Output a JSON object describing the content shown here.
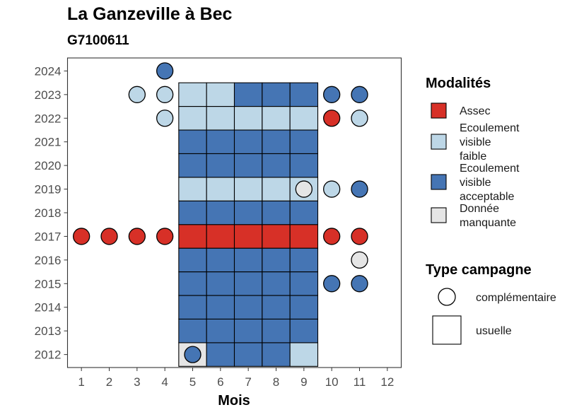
{
  "chart_data": {
    "type": "heatmap",
    "title": "La Ganzeville à Bec",
    "subtitle": "G7100611",
    "xlabel": "Mois",
    "ylabel": "",
    "x_ticks": [
      1,
      2,
      3,
      4,
      5,
      6,
      7,
      8,
      9,
      10,
      11,
      12
    ],
    "y_ticks": [
      2012,
      2013,
      2014,
      2015,
      2016,
      2017,
      2018,
      2019,
      2020,
      2021,
      2022,
      2023,
      2024
    ],
    "xlim": [
      0.5,
      12.5
    ],
    "ylim": [
      2011.45,
      2024.55
    ],
    "colors": {
      "Assec": "#d73027",
      "Ecoulement visible faible": "#bdd7e7",
      "Ecoulement visible acceptable": "#4575b4",
      "Donnée manquante": "#e5e5e5"
    },
    "legend": {
      "modalites_title": "Modalités",
      "modalites": [
        {
          "key": "Assec",
          "lines": [
            "Assec"
          ]
        },
        {
          "key": "Ecoulement visible faible",
          "lines": [
            "Ecoulement",
            "visible",
            "faible"
          ]
        },
        {
          "key": "Ecoulement visible acceptable",
          "lines": [
            "Ecoulement",
            "visible",
            "acceptable"
          ]
        },
        {
          "key": "Donnée manquante",
          "lines": [
            "Donnée",
            "manquante"
          ]
        }
      ],
      "type_title": "Type campagne",
      "types": [
        {
          "shape": "circle",
          "label": "complémentaire"
        },
        {
          "shape": "square",
          "label": "usuelle"
        }
      ]
    },
    "usuelle": [
      {
        "year": 2012,
        "values": [
          "Donnée manquante",
          "Ecoulement visible acceptable",
          "Ecoulement visible acceptable",
          "Ecoulement visible acceptable",
          "Ecoulement visible faible"
        ]
      },
      {
        "year": 2013,
        "values": [
          "Ecoulement visible acceptable",
          "Ecoulement visible acceptable",
          "Ecoulement visible acceptable",
          "Ecoulement visible acceptable",
          "Ecoulement visible acceptable"
        ]
      },
      {
        "year": 2014,
        "values": [
          "Ecoulement visible acceptable",
          "Ecoulement visible acceptable",
          "Ecoulement visible acceptable",
          "Ecoulement visible acceptable",
          "Ecoulement visible acceptable"
        ]
      },
      {
        "year": 2015,
        "values": [
          "Ecoulement visible acceptable",
          "Ecoulement visible acceptable",
          "Ecoulement visible acceptable",
          "Ecoulement visible acceptable",
          "Ecoulement visible acceptable"
        ]
      },
      {
        "year": 2016,
        "values": [
          "Ecoulement visible acceptable",
          "Ecoulement visible acceptable",
          "Ecoulement visible acceptable",
          "Ecoulement visible acceptable",
          "Ecoulement visible acceptable"
        ]
      },
      {
        "year": 2017,
        "values": [
          "Assec",
          "Assec",
          "Assec",
          "Assec",
          "Assec"
        ]
      },
      {
        "year": 2018,
        "values": [
          "Ecoulement visible acceptable",
          "Ecoulement visible acceptable",
          "Ecoulement visible acceptable",
          "Ecoulement visible acceptable",
          "Ecoulement visible acceptable"
        ]
      },
      {
        "year": 2019,
        "values": [
          "Ecoulement visible faible",
          "Ecoulement visible faible",
          "Ecoulement visible faible",
          "Ecoulement visible faible",
          "Ecoulement visible faible"
        ]
      },
      {
        "year": 2020,
        "values": [
          "Ecoulement visible acceptable",
          "Ecoulement visible acceptable",
          "Ecoulement visible acceptable",
          "Ecoulement visible acceptable",
          "Ecoulement visible acceptable"
        ]
      },
      {
        "year": 2021,
        "values": [
          "Ecoulement visible acceptable",
          "Ecoulement visible acceptable",
          "Ecoulement visible acceptable",
          "Ecoulement visible acceptable",
          "Ecoulement visible acceptable"
        ]
      },
      {
        "year": 2022,
        "values": [
          "Ecoulement visible faible",
          "Ecoulement visible faible",
          "Ecoulement visible faible",
          "Ecoulement visible faible",
          "Ecoulement visible faible"
        ]
      },
      {
        "year": 2023,
        "values": [
          "Ecoulement visible faible",
          "Ecoulement visible faible",
          "Ecoulement visible acceptable",
          "Ecoulement visible acceptable",
          "Ecoulement visible acceptable"
        ]
      }
    ],
    "usuelle_months": [
      5,
      6,
      7,
      8,
      9
    ],
    "complementaire": [
      {
        "month": 4,
        "year": 2024,
        "value": "Ecoulement visible acceptable"
      },
      {
        "month": 3,
        "year": 2023,
        "value": "Ecoulement visible faible"
      },
      {
        "month": 4,
        "year": 2023,
        "value": "Ecoulement visible faible"
      },
      {
        "month": 10,
        "year": 2023,
        "value": "Ecoulement visible acceptable"
      },
      {
        "month": 11,
        "year": 2023,
        "value": "Ecoulement visible acceptable"
      },
      {
        "month": 4,
        "year": 2022,
        "value": "Ecoulement visible faible"
      },
      {
        "month": 10,
        "year": 2022,
        "value": "Assec"
      },
      {
        "month": 11,
        "year": 2022,
        "value": "Ecoulement visible faible"
      },
      {
        "month": 9,
        "year": 2019,
        "value": "Donnée manquante"
      },
      {
        "month": 10,
        "year": 2019,
        "value": "Ecoulement visible faible"
      },
      {
        "month": 11,
        "year": 2019,
        "value": "Ecoulement visible acceptable"
      },
      {
        "month": 1,
        "year": 2017,
        "value": "Assec"
      },
      {
        "month": 2,
        "year": 2017,
        "value": "Assec"
      },
      {
        "month": 3,
        "year": 2017,
        "value": "Assec"
      },
      {
        "month": 4,
        "year": 2017,
        "value": "Assec"
      },
      {
        "month": 10,
        "year": 2017,
        "value": "Assec"
      },
      {
        "month": 11,
        "year": 2017,
        "value": "Assec"
      },
      {
        "month": 11,
        "year": 2016,
        "value": "Donnée manquante"
      },
      {
        "month": 10,
        "year": 2015,
        "value": "Ecoulement visible acceptable"
      },
      {
        "month": 11,
        "year": 2015,
        "value": "Ecoulement visible acceptable"
      },
      {
        "month": 5,
        "year": 2012,
        "value": "Ecoulement visible acceptable"
      }
    ]
  }
}
